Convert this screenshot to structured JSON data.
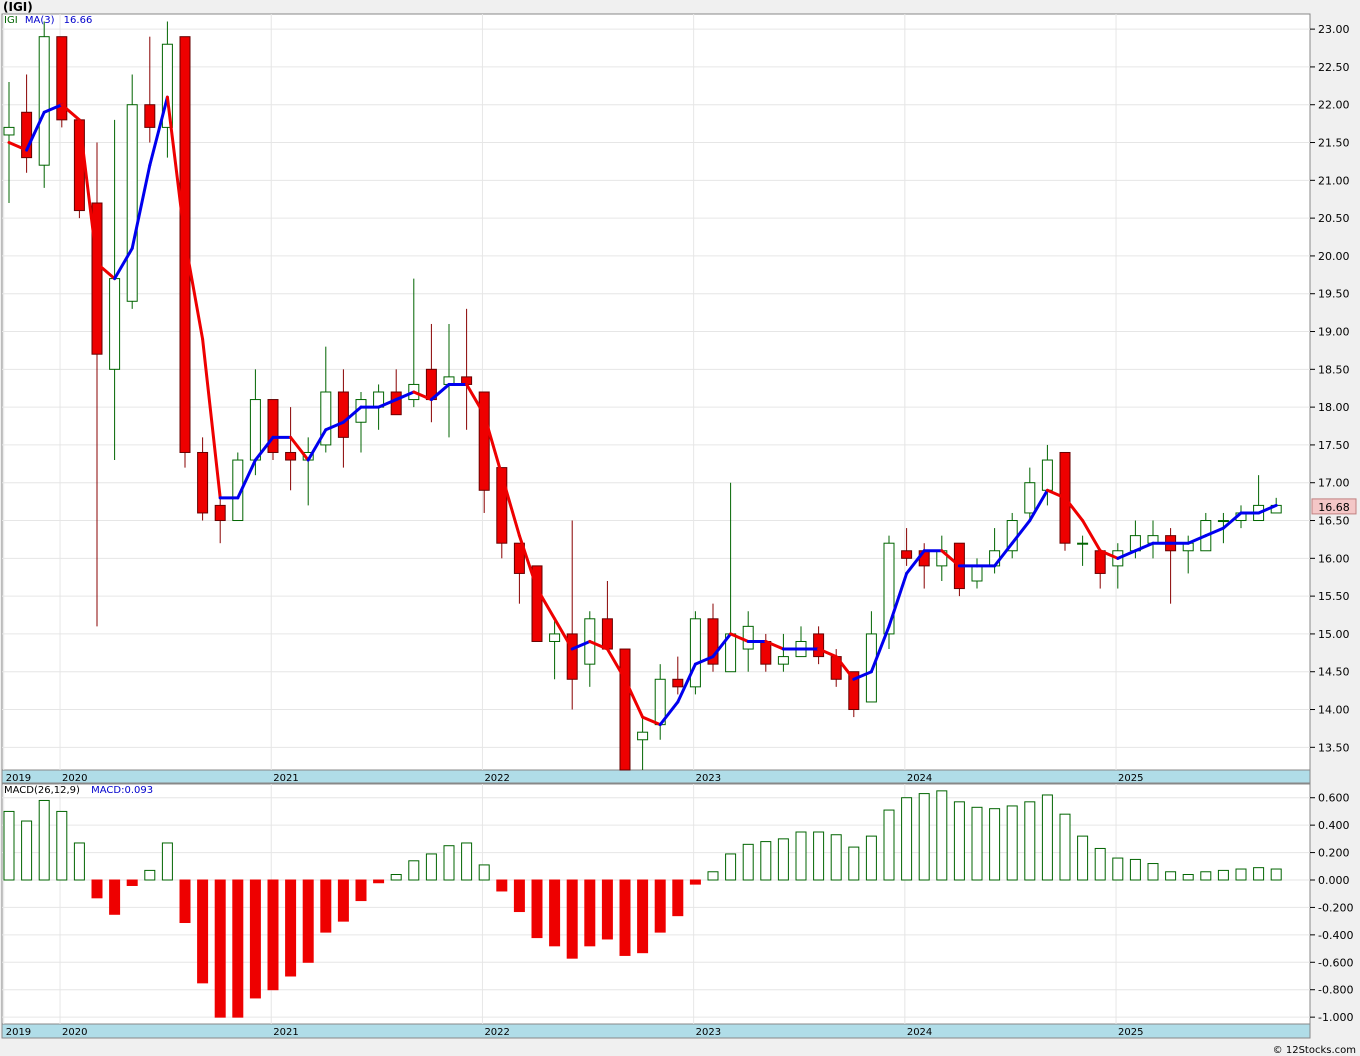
{
  "header": {
    "title": "(IGI)"
  },
  "legend_main": {
    "symbol": "IGI",
    "ma_label": "MA(3)",
    "ma_value": "16.66"
  },
  "legend_macd": {
    "label": "MACD(26,12,9)",
    "value_label": "MACD:0.093"
  },
  "last_price_label": "16.68",
  "copyright": "© 12Stocks.com",
  "colors": {
    "up_candle": "#ffffff",
    "down_candle": "#ee0000",
    "wick_up": "#006400",
    "ma_up": "#0000ee",
    "ma_down": "#ee0000",
    "macd_pos": "#006400",
    "macd_neg": "#ee0000",
    "axis_band": "#b0dde8",
    "price_tag": "#f4c7c7"
  },
  "chart_data": [
    {
      "type": "candlestick",
      "symbol": "IGI",
      "frequency": "monthly",
      "yticks": [
        "23.00",
        "22.50",
        "22.00",
        "21.50",
        "21.00",
        "20.50",
        "20.00",
        "19.50",
        "19.00",
        "18.50",
        "18.00",
        "17.50",
        "17.00",
        "16.50",
        "16.00",
        "15.50",
        "15.00",
        "14.50",
        "14.00",
        "13.50"
      ],
      "ylim": [
        13.2,
        23.2
      ],
      "xticks": [
        "2019",
        "2020",
        "2021",
        "2022",
        "2023",
        "2024",
        "2025"
      ],
      "candles": [
        {
          "o": 21.6,
          "h": 22.3,
          "l": 20.7,
          "c": 21.7
        },
        {
          "o": 21.9,
          "h": 22.4,
          "l": 21.1,
          "c": 21.3
        },
        {
          "o": 21.2,
          "h": 23.1,
          "l": 20.9,
          "c": 22.9
        },
        {
          "o": 22.9,
          "h": 22.9,
          "l": 21.7,
          "c": 21.8
        },
        {
          "o": 21.8,
          "h": 21.8,
          "l": 20.5,
          "c": 20.6
        },
        {
          "o": 20.7,
          "h": 21.5,
          "l": 15.1,
          "c": 18.7
        },
        {
          "o": 18.5,
          "h": 21.8,
          "l": 17.3,
          "c": 19.7
        },
        {
          "o": 19.4,
          "h": 22.4,
          "l": 19.3,
          "c": 22.0
        },
        {
          "o": 22.0,
          "h": 22.9,
          "l": 21.5,
          "c": 21.7
        },
        {
          "o": 21.7,
          "h": 23.1,
          "l": 21.3,
          "c": 22.8
        },
        {
          "o": 22.9,
          "h": 22.9,
          "l": 17.2,
          "c": 17.4
        },
        {
          "o": 17.4,
          "h": 17.6,
          "l": 16.5,
          "c": 16.6
        },
        {
          "o": 16.7,
          "h": 16.8,
          "l": 16.2,
          "c": 16.5
        },
        {
          "o": 16.5,
          "h": 17.4,
          "l": 16.5,
          "c": 17.3
        },
        {
          "o": 17.3,
          "h": 18.5,
          "l": 17.1,
          "c": 18.1
        },
        {
          "o": 18.1,
          "h": 18.1,
          "l": 17.3,
          "c": 17.4
        },
        {
          "o": 17.4,
          "h": 18.0,
          "l": 16.9,
          "c": 17.3
        },
        {
          "o": 17.3,
          "h": 17.6,
          "l": 16.7,
          "c": 17.4
        },
        {
          "o": 17.5,
          "h": 18.8,
          "l": 17.4,
          "c": 18.2
        },
        {
          "o": 18.2,
          "h": 18.5,
          "l": 17.2,
          "c": 17.6
        },
        {
          "o": 17.8,
          "h": 18.2,
          "l": 17.4,
          "c": 18.1
        },
        {
          "o": 18.0,
          "h": 18.3,
          "l": 17.7,
          "c": 18.2
        },
        {
          "o": 18.2,
          "h": 18.5,
          "l": 17.9,
          "c": 17.9
        },
        {
          "o": 18.1,
          "h": 19.7,
          "l": 18.0,
          "c": 18.3
        },
        {
          "o": 18.5,
          "h": 19.1,
          "l": 17.8,
          "c": 18.1
        },
        {
          "o": 18.3,
          "h": 19.1,
          "l": 17.6,
          "c": 18.4
        },
        {
          "o": 18.4,
          "h": 19.3,
          "l": 17.7,
          "c": 18.3
        },
        {
          "o": 18.2,
          "h": 18.2,
          "l": 16.6,
          "c": 16.9
        },
        {
          "o": 17.2,
          "h": 17.2,
          "l": 16.0,
          "c": 16.2
        },
        {
          "o": 16.2,
          "h": 16.2,
          "l": 15.4,
          "c": 15.8
        },
        {
          "o": 15.9,
          "h": 15.9,
          "l": 14.9,
          "c": 14.9
        },
        {
          "o": 14.9,
          "h": 15.2,
          "l": 14.4,
          "c": 15.0
        },
        {
          "o": 15.0,
          "h": 16.5,
          "l": 14.0,
          "c": 14.4
        },
        {
          "o": 14.6,
          "h": 15.3,
          "l": 14.3,
          "c": 15.2
        },
        {
          "o": 15.2,
          "h": 15.7,
          "l": 14.8,
          "c": 14.8
        },
        {
          "o": 14.8,
          "h": 14.8,
          "l": 13.2,
          "c": 13.2
        },
        {
          "o": 13.6,
          "h": 13.9,
          "l": 13.2,
          "c": 13.7
        },
        {
          "o": 13.8,
          "h": 14.6,
          "l": 13.6,
          "c": 14.4
        },
        {
          "o": 14.4,
          "h": 14.7,
          "l": 14.2,
          "c": 14.3
        },
        {
          "o": 14.3,
          "h": 15.3,
          "l": 14.2,
          "c": 15.2
        },
        {
          "o": 15.2,
          "h": 15.4,
          "l": 14.5,
          "c": 14.6
        },
        {
          "o": 14.5,
          "h": 17.0,
          "l": 14.5,
          "c": 15.0
        },
        {
          "o": 14.8,
          "h": 15.3,
          "l": 14.5,
          "c": 15.1
        },
        {
          "o": 14.9,
          "h": 15.0,
          "l": 14.5,
          "c": 14.6
        },
        {
          "o": 14.6,
          "h": 15.0,
          "l": 14.5,
          "c": 14.7
        },
        {
          "o": 14.7,
          "h": 15.1,
          "l": 14.7,
          "c": 14.9
        },
        {
          "o": 15.0,
          "h": 15.1,
          "l": 14.6,
          "c": 14.7
        },
        {
          "o": 14.7,
          "h": 14.8,
          "l": 14.3,
          "c": 14.4
        },
        {
          "o": 14.5,
          "h": 14.5,
          "l": 13.9,
          "c": 14.0
        },
        {
          "o": 14.1,
          "h": 15.3,
          "l": 14.1,
          "c": 15.0
        },
        {
          "o": 15.0,
          "h": 16.3,
          "l": 14.8,
          "c": 16.2
        },
        {
          "o": 16.1,
          "h": 16.4,
          "l": 15.9,
          "c": 16.0
        },
        {
          "o": 16.1,
          "h": 16.2,
          "l": 15.6,
          "c": 15.9
        },
        {
          "o": 15.9,
          "h": 16.3,
          "l": 15.7,
          "c": 16.1
        },
        {
          "o": 16.2,
          "h": 16.2,
          "l": 15.5,
          "c": 15.6
        },
        {
          "o": 15.7,
          "h": 16.0,
          "l": 15.6,
          "c": 15.9
        },
        {
          "o": 15.9,
          "h": 16.4,
          "l": 15.8,
          "c": 16.1
        },
        {
          "o": 16.1,
          "h": 16.6,
          "l": 16.0,
          "c": 16.5
        },
        {
          "o": 16.6,
          "h": 17.2,
          "l": 16.5,
          "c": 17.0
        },
        {
          "o": 16.9,
          "h": 17.5,
          "l": 16.7,
          "c": 17.3
        },
        {
          "o": 17.4,
          "h": 17.4,
          "l": 16.1,
          "c": 16.2
        },
        {
          "o": 16.2,
          "h": 16.3,
          "l": 15.9,
          "c": 16.2
        },
        {
          "o": 16.1,
          "h": 16.1,
          "l": 15.6,
          "c": 15.8
        },
        {
          "o": 15.9,
          "h": 16.2,
          "l": 15.6,
          "c": 16.1
        },
        {
          "o": 16.1,
          "h": 16.5,
          "l": 16.0,
          "c": 16.3
        },
        {
          "o": 16.2,
          "h": 16.5,
          "l": 16.0,
          "c": 16.3
        },
        {
          "o": 16.3,
          "h": 16.4,
          "l": 15.4,
          "c": 16.1
        },
        {
          "o": 16.1,
          "h": 16.3,
          "l": 15.8,
          "c": 16.2
        },
        {
          "o": 16.1,
          "h": 16.6,
          "l": 16.1,
          "c": 16.5
        },
        {
          "o": 16.5,
          "h": 16.6,
          "l": 16.2,
          "c": 16.5
        },
        {
          "o": 16.5,
          "h": 16.7,
          "l": 16.4,
          "c": 16.6
        },
        {
          "o": 16.5,
          "h": 17.1,
          "l": 16.5,
          "c": 16.7
        },
        {
          "o": 16.6,
          "h": 16.8,
          "l": 16.6,
          "c": 16.7
        }
      ],
      "ma3": [
        21.5,
        21.4,
        21.9,
        22.0,
        21.8,
        19.9,
        19.7,
        20.1,
        21.2,
        22.1,
        20.2,
        18.9,
        16.8,
        16.8,
        17.3,
        17.6,
        17.6,
        17.3,
        17.7,
        17.8,
        18.0,
        18.0,
        18.1,
        18.2,
        18.1,
        18.3,
        18.3,
        17.9,
        17.1,
        16.3,
        15.6,
        15.2,
        14.8,
        14.9,
        14.8,
        14.4,
        13.9,
        13.8,
        14.1,
        14.6,
        14.7,
        15.0,
        14.9,
        14.9,
        14.8,
        14.8,
        14.8,
        14.7,
        14.4,
        14.5,
        15.1,
        15.8,
        16.1,
        16.1,
        15.9,
        15.9,
        15.9,
        16.2,
        16.5,
        16.9,
        16.8,
        16.5,
        16.1,
        16.0,
        16.1,
        16.2,
        16.2,
        16.2,
        16.3,
        16.4,
        16.6,
        16.6,
        16.7
      ],
      "last": 16.68
    },
    {
      "type": "bar",
      "title": "MACD(26,12,9)",
      "yticks": [
        "0.600",
        "0.400",
        "0.200",
        "0.000",
        "-0.200",
        "-0.400",
        "-0.600",
        "-0.800",
        "-1.000"
      ],
      "ylim": [
        -1.05,
        0.7
      ],
      "xticks": [
        "2019",
        "2020",
        "2021",
        "2022",
        "2023",
        "2024",
        "2025"
      ],
      "values": [
        0.5,
        0.43,
        0.58,
        0.5,
        0.27,
        -0.13,
        -0.25,
        -0.04,
        0.07,
        0.27,
        -0.31,
        -0.75,
        -1.0,
        -1.0,
        -0.86,
        -0.8,
        -0.7,
        -0.6,
        -0.38,
        -0.3,
        -0.15,
        -0.02,
        0.04,
        0.14,
        0.19,
        0.25,
        0.27,
        0.11,
        -0.08,
        -0.23,
        -0.42,
        -0.48,
        -0.57,
        -0.48,
        -0.43,
        -0.55,
        -0.53,
        -0.38,
        -0.26,
        -0.03,
        0.06,
        0.19,
        0.26,
        0.28,
        0.3,
        0.35,
        0.35,
        0.33,
        0.24,
        0.32,
        0.51,
        0.6,
        0.63,
        0.65,
        0.57,
        0.53,
        0.52,
        0.54,
        0.57,
        0.62,
        0.48,
        0.32,
        0.23,
        0.16,
        0.15,
        0.12,
        0.06,
        0.04,
        0.06,
        0.07,
        0.08,
        0.09,
        0.08
      ]
    }
  ]
}
